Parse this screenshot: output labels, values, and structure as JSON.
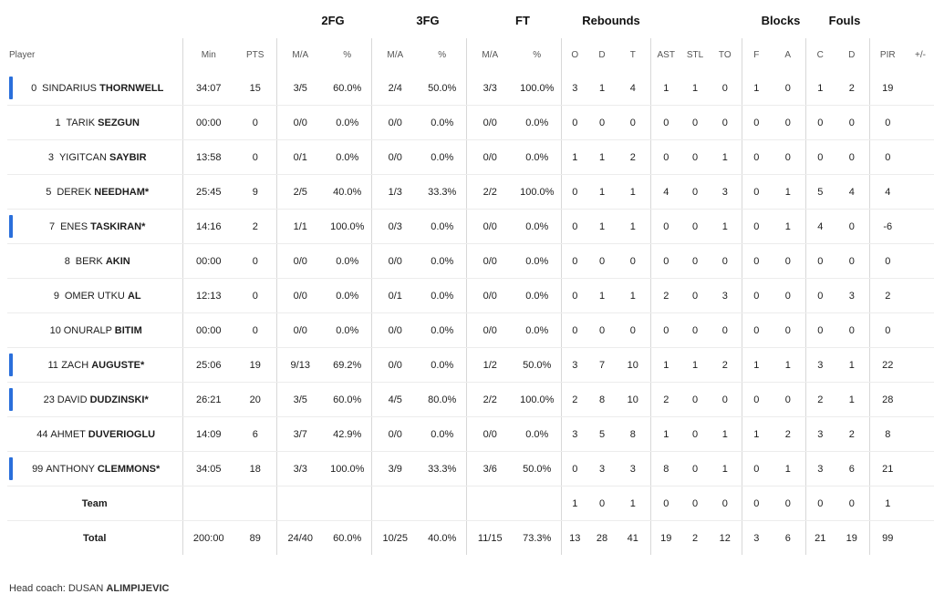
{
  "groups": {
    "fg2": "2FG",
    "fg3": "3FG",
    "ft": "FT",
    "rebounds": "Rebounds",
    "blocks": "Blocks",
    "fouls": "Fouls"
  },
  "columns": [
    "Player",
    "Min",
    "PTS",
    "M/A",
    "%",
    "M/A",
    "%",
    "M/A",
    "%",
    "O",
    "D",
    "T",
    "AST",
    "STL",
    "TO",
    "F",
    "A",
    "C",
    "D",
    "PIR",
    "+/-"
  ],
  "players": [
    {
      "num": "0",
      "first": "SINDARIUS",
      "last": "THORNWELL",
      "star": "",
      "starter": true,
      "stats": [
        "34:07",
        "15",
        "3/5",
        "60.0%",
        "2/4",
        "50.0%",
        "3/3",
        "100.0%",
        "3",
        "1",
        "4",
        "1",
        "1",
        "0",
        "1",
        "0",
        "1",
        "2",
        "19",
        ""
      ]
    },
    {
      "num": "1",
      "first": "TARIK",
      "last": "SEZGUN",
      "star": "",
      "starter": false,
      "stats": [
        "00:00",
        "0",
        "0/0",
        "0.0%",
        "0/0",
        "0.0%",
        "0/0",
        "0.0%",
        "0",
        "0",
        "0",
        "0",
        "0",
        "0",
        "0",
        "0",
        "0",
        "0",
        "0",
        ""
      ]
    },
    {
      "num": "3",
      "first": "YIGITCAN",
      "last": "SAYBIR",
      "star": "",
      "starter": false,
      "stats": [
        "13:58",
        "0",
        "0/1",
        "0.0%",
        "0/0",
        "0.0%",
        "0/0",
        "0.0%",
        "1",
        "1",
        "2",
        "0",
        "0",
        "1",
        "0",
        "0",
        "0",
        "0",
        "0",
        ""
      ]
    },
    {
      "num": "5",
      "first": "DEREK",
      "last": "NEEDHAM",
      "star": "*",
      "starter": false,
      "stats": [
        "25:45",
        "9",
        "2/5",
        "40.0%",
        "1/3",
        "33.3%",
        "2/2",
        "100.0%",
        "0",
        "1",
        "1",
        "4",
        "0",
        "3",
        "0",
        "1",
        "5",
        "4",
        "4",
        ""
      ]
    },
    {
      "num": "7",
      "first": "ENES",
      "last": "TASKIRAN",
      "star": "*",
      "starter": true,
      "stats": [
        "14:16",
        "2",
        "1/1",
        "100.0%",
        "0/3",
        "0.0%",
        "0/0",
        "0.0%",
        "0",
        "1",
        "1",
        "0",
        "0",
        "1",
        "0",
        "1",
        "4",
        "0",
        "-6",
        ""
      ]
    },
    {
      "num": "8",
      "first": "BERK",
      "last": "AKIN",
      "star": "",
      "starter": false,
      "stats": [
        "00:00",
        "0",
        "0/0",
        "0.0%",
        "0/0",
        "0.0%",
        "0/0",
        "0.0%",
        "0",
        "0",
        "0",
        "0",
        "0",
        "0",
        "0",
        "0",
        "0",
        "0",
        "0",
        ""
      ]
    },
    {
      "num": "9",
      "first": "OMER UTKU",
      "last": "AL",
      "star": "",
      "starter": false,
      "stats": [
        "12:13",
        "0",
        "0/0",
        "0.0%",
        "0/1",
        "0.0%",
        "0/0",
        "0.0%",
        "0",
        "1",
        "1",
        "2",
        "0",
        "3",
        "0",
        "0",
        "0",
        "3",
        "2",
        ""
      ]
    },
    {
      "num": "10",
      "first": "ONURALP",
      "last": "BITIM",
      "star": "",
      "starter": false,
      "stats": [
        "00:00",
        "0",
        "0/0",
        "0.0%",
        "0/0",
        "0.0%",
        "0/0",
        "0.0%",
        "0",
        "0",
        "0",
        "0",
        "0",
        "0",
        "0",
        "0",
        "0",
        "0",
        "0",
        ""
      ]
    },
    {
      "num": "11",
      "first": "ZACH",
      "last": "AUGUSTE",
      "star": "*",
      "starter": true,
      "stats": [
        "25:06",
        "19",
        "9/13",
        "69.2%",
        "0/0",
        "0.0%",
        "1/2",
        "50.0%",
        "3",
        "7",
        "10",
        "1",
        "1",
        "2",
        "1",
        "1",
        "3",
        "1",
        "22",
        ""
      ]
    },
    {
      "num": "23",
      "first": "DAVID",
      "last": "DUDZINSKI",
      "star": "*",
      "starter": true,
      "stats": [
        "26:21",
        "20",
        "3/5",
        "60.0%",
        "4/5",
        "80.0%",
        "2/2",
        "100.0%",
        "2",
        "8",
        "10",
        "2",
        "0",
        "0",
        "0",
        "0",
        "2",
        "1",
        "28",
        ""
      ]
    },
    {
      "num": "44",
      "first": "AHMET",
      "last": "DUVERIOGLU",
      "star": "",
      "starter": false,
      "stats": [
        "14:09",
        "6",
        "3/7",
        "42.9%",
        "0/0",
        "0.0%",
        "0/0",
        "0.0%",
        "3",
        "5",
        "8",
        "1",
        "0",
        "1",
        "1",
        "2",
        "3",
        "2",
        "8",
        ""
      ]
    },
    {
      "num": "99",
      "first": "ANTHONY",
      "last": "CLEMMONS",
      "star": "*",
      "starter": true,
      "stats": [
        "34:05",
        "18",
        "3/3",
        "100.0%",
        "3/9",
        "33.3%",
        "3/6",
        "50.0%",
        "0",
        "3",
        "3",
        "8",
        "0",
        "1",
        "0",
        "1",
        "3",
        "6",
        "21",
        ""
      ]
    }
  ],
  "team": {
    "label": "Team",
    "stats": [
      "",
      "",
      "",
      "",
      "",
      "",
      "",
      "",
      "1",
      "0",
      "1",
      "0",
      "0",
      "0",
      "0",
      "0",
      "0",
      "0",
      "1",
      ""
    ]
  },
  "total": {
    "label": "Total",
    "stats": [
      "200:00",
      "89",
      "24/40",
      "60.0%",
      "10/25",
      "40.0%",
      "11/15",
      "73.3%",
      "13",
      "28",
      "41",
      "19",
      "2",
      "12",
      "3",
      "6",
      "21",
      "19",
      "99",
      ""
    ]
  },
  "coach": {
    "prefix": "Head coach:",
    "first": "DUSAN",
    "last": "ALIMPIJEVIC"
  },
  "colors": {
    "starter_bar": "#2a6fdb",
    "divider": "#d8d8d8"
  }
}
